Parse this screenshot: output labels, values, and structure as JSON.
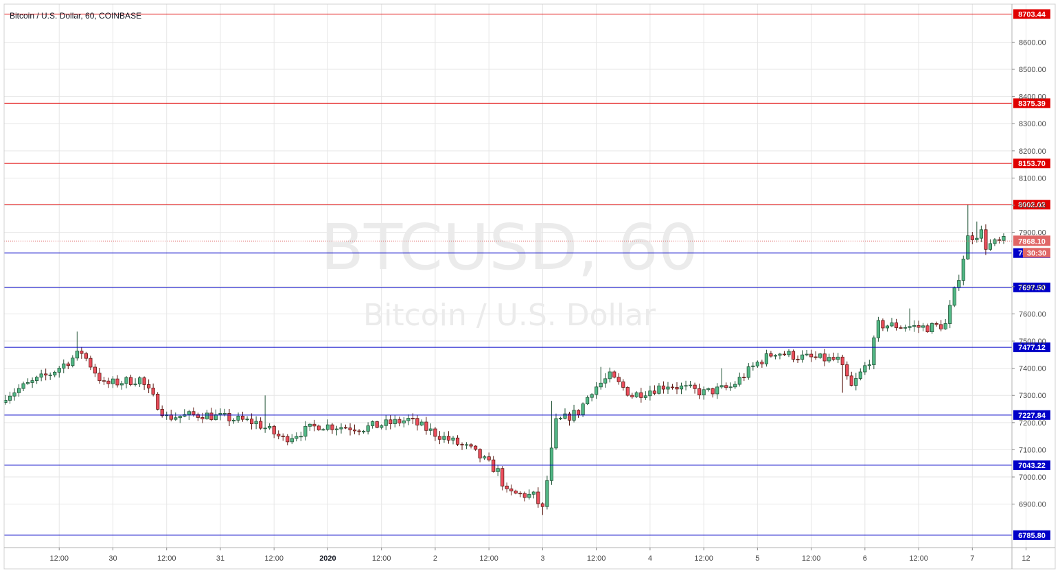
{
  "chart_data": {
    "type": "candlestick",
    "title": "Bitcoin / U.S. Dollar, 60, COINBASE",
    "watermark": {
      "symbol": "BTCUSD, 60",
      "name": "Bitcoin / U.S. Dollar"
    },
    "ylim": [
      6740,
      8740
    ],
    "y_ticks": [
      6900,
      7000,
      7100,
      7200,
      7300,
      7400,
      7500,
      7600,
      7700,
      7900,
      8000,
      8100,
      8200,
      8300,
      8400,
      8500,
      8600
    ],
    "y_tick_labels": [
      "6900.00",
      "7000.00",
      "7100.00",
      "7200.00",
      "7300.00",
      "7400.00",
      "7500.00",
      "7600.00",
      "7700.00",
      "7900.00",
      "8000.00",
      "8100.00",
      "8200.00",
      "8300.00",
      "8400.00",
      "8500.00",
      "8600.00"
    ],
    "x_ticks": [
      {
        "label": "12:00",
        "pos": 12,
        "bold": false
      },
      {
        "label": "30",
        "pos": 24,
        "bold": false
      },
      {
        "label": "12:00",
        "pos": 36,
        "bold": false
      },
      {
        "label": "31",
        "pos": 48,
        "bold": false
      },
      {
        "label": "12:00",
        "pos": 60,
        "bold": false
      },
      {
        "label": "2020",
        "pos": 72,
        "bold": true
      },
      {
        "label": "12:00",
        "pos": 84,
        "bold": false
      },
      {
        "label": "2",
        "pos": 96,
        "bold": false
      },
      {
        "label": "12:00",
        "pos": 108,
        "bold": false
      },
      {
        "label": "3",
        "pos": 120,
        "bold": false
      },
      {
        "label": "12:00",
        "pos": 132,
        "bold": false
      },
      {
        "label": "4",
        "pos": 144,
        "bold": false
      },
      {
        "label": "12:00",
        "pos": 156,
        "bold": false
      },
      {
        "label": "5",
        "pos": 168,
        "bold": false
      },
      {
        "label": "12:00",
        "pos": 180,
        "bold": false
      },
      {
        "label": "6",
        "pos": 192,
        "bold": false
      },
      {
        "label": "12:00",
        "pos": 204,
        "bold": false
      },
      {
        "label": "7",
        "pos": 216,
        "bold": false
      },
      {
        "label": "12",
        "pos": 228,
        "bold": false
      }
    ],
    "levels": [
      {
        "value": 8703.44,
        "label": "8703.44",
        "kind": "resistance",
        "color": "#e00000"
      },
      {
        "value": 8375.39,
        "label": "8375.39",
        "kind": "resistance",
        "color": "#e00000"
      },
      {
        "value": 8153.7,
        "label": "8153.70",
        "kind": "resistance",
        "color": "#e00000"
      },
      {
        "value": 8002.02,
        "label": "8002.02",
        "kind": "resistance",
        "color": "#e00000"
      },
      {
        "value": 7823.98,
        "label": "7823.98",
        "kind": "support",
        "color": "#0000c8"
      },
      {
        "value": 7697.5,
        "label": "7697.50",
        "kind": "support",
        "color": "#0000c8"
      },
      {
        "value": 7477.12,
        "label": "7477.12",
        "kind": "support",
        "color": "#0000c8"
      },
      {
        "value": 7227.84,
        "label": "7227.84",
        "kind": "support",
        "color": "#0000c8"
      },
      {
        "value": 7043.22,
        "label": "7043.22",
        "kind": "support",
        "color": "#0000c8"
      },
      {
        "value": 6785.8,
        "label": "6785.80",
        "kind": "support",
        "color": "#0000c8"
      }
    ],
    "current_price": {
      "value": 7868.1,
      "label": "7868.10",
      "countdown": "30:30",
      "color": "#e06666"
    },
    "colors": {
      "up": "#53b987",
      "down": "#eb4d5c",
      "up_border": "#225437",
      "down_border": "#5b1a13",
      "grid": "#e6e6e6"
    },
    "anchors": [
      {
        "i": 0,
        "p": 7300
      },
      {
        "i": 10,
        "p": 7380
      },
      {
        "i": 17,
        "p": 7460
      },
      {
        "i": 22,
        "p": 7340
      },
      {
        "i": 30,
        "p": 7360
      },
      {
        "i": 36,
        "p": 7220
      },
      {
        "i": 44,
        "p": 7230
      },
      {
        "i": 56,
        "p": 7200
      },
      {
        "i": 62,
        "p": 7140
      },
      {
        "i": 70,
        "p": 7190
      },
      {
        "i": 80,
        "p": 7180
      },
      {
        "i": 90,
        "p": 7210
      },
      {
        "i": 96,
        "p": 7160
      },
      {
        "i": 104,
        "p": 7100
      },
      {
        "i": 110,
        "p": 7020
      },
      {
        "i": 112,
        "p": 6940
      },
      {
        "i": 118,
        "p": 6930
      },
      {
        "i": 120,
        "p": 6880
      },
      {
        "i": 123,
        "p": 7200
      },
      {
        "i": 128,
        "p": 7240
      },
      {
        "i": 131,
        "p": 7320
      },
      {
        "i": 135,
        "p": 7370
      },
      {
        "i": 140,
        "p": 7300
      },
      {
        "i": 148,
        "p": 7340
      },
      {
        "i": 156,
        "p": 7310
      },
      {
        "i": 162,
        "p": 7330
      },
      {
        "i": 168,
        "p": 7420
      },
      {
        "i": 172,
        "p": 7460
      },
      {
        "i": 178,
        "p": 7440
      },
      {
        "i": 186,
        "p": 7430
      },
      {
        "i": 189,
        "p": 7330
      },
      {
        "i": 193,
        "p": 7430
      },
      {
        "i": 195,
        "p": 7560
      },
      {
        "i": 206,
        "p": 7550
      },
      {
        "i": 210,
        "p": 7560
      },
      {
        "i": 213,
        "p": 7740
      },
      {
        "i": 215,
        "p": 7880
      },
      {
        "i": 218,
        "p": 7900
      },
      {
        "i": 219,
        "p": 7850
      },
      {
        "i": 223,
        "p": 7868
      }
    ]
  }
}
